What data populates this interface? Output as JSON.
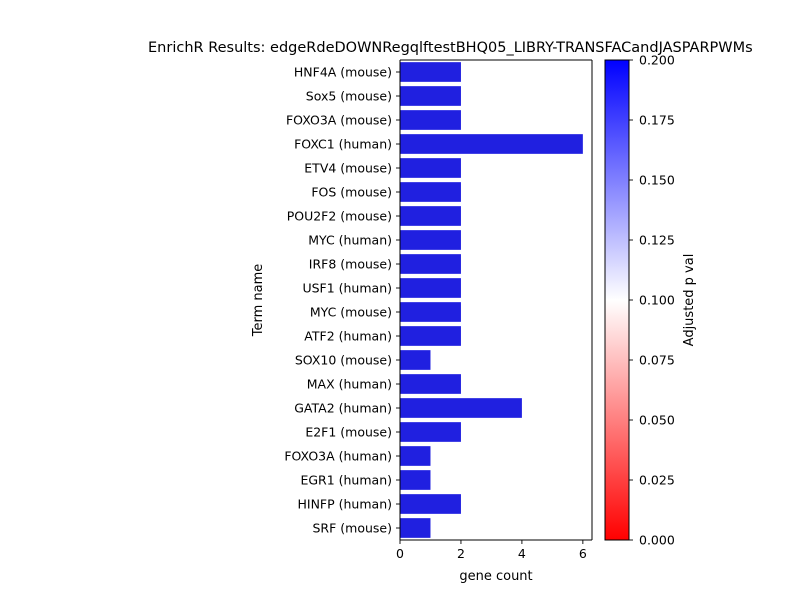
{
  "chart_data": {
    "type": "bar",
    "orientation": "horizontal",
    "title": "EnrichR Results: edgeRdeDOWNRegqlftestBHQ05_LIBRY-TRANSFACandJASPARPWMs",
    "xlabel": "gene count",
    "ylabel": "Term name",
    "xlim": [
      0,
      6.3
    ],
    "xticks": [
      0,
      2,
      4,
      6
    ],
    "categories": [
      "HNF4A (mouse)",
      "Sox5 (mouse)",
      "FOXO3A (mouse)",
      "FOXC1 (human)",
      "ETV4 (mouse)",
      "FOS (mouse)",
      "POU2F2 (mouse)",
      "MYC (human)",
      "IRF8 (mouse)",
      "USF1 (human)",
      "MYC (mouse)",
      "ATF2 (human)",
      "SOX10 (mouse)",
      "MAX (human)",
      "GATA2 (human)",
      "E2F1 (mouse)",
      "FOXO3A (human)",
      "EGR1 (human)",
      "HINFP (human)",
      "SRF (mouse)"
    ],
    "values": [
      2,
      2,
      2,
      6,
      2,
      2,
      2,
      2,
      2,
      2,
      2,
      2,
      1,
      2,
      4,
      2,
      1,
      1,
      2,
      1
    ],
    "bar_color": "#2020e0",
    "grid": false,
    "colorbar": {
      "label": "Adjusted p val",
      "range": [
        0.0,
        0.2
      ],
      "ticks": [
        "0.000",
        "0.025",
        "0.050",
        "0.075",
        "0.100",
        "0.125",
        "0.150",
        "0.175",
        "0.200"
      ],
      "colors": [
        "#ff0000",
        "#ffffff",
        "#0000ff"
      ]
    }
  }
}
